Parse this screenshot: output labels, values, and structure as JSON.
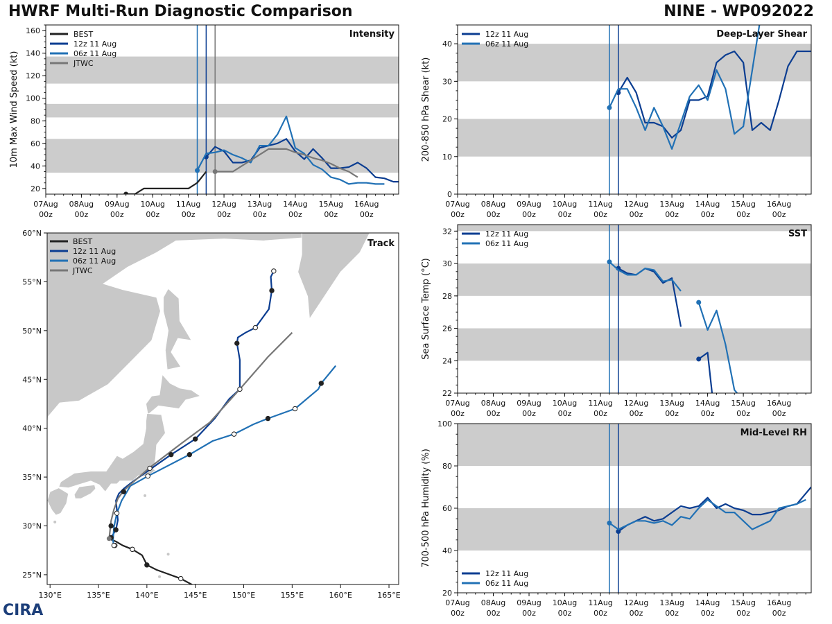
{
  "header": {
    "title_left": "HWRF Multi-Run Diagnostic Comparison",
    "title_right": "NINE - WP092022",
    "logo_text": "CIRA"
  },
  "colors": {
    "best": "#222222",
    "run12": "#0b3d91",
    "run06": "#2171b5",
    "jtwc": "#777777",
    "band": "#cccccc",
    "land": "#c8c8c8"
  },
  "legend": {
    "best": "BEST",
    "run12": "12z 11 Aug",
    "run06": "06z 11 Aug",
    "jtwc": "JTWC"
  },
  "time_axis": {
    "start_day": 7,
    "end_day": 16.9,
    "tick_days": [
      7,
      8,
      9,
      10,
      11,
      12,
      13,
      14,
      15,
      16
    ],
    "tick_labels": [
      "07Aug",
      "08Aug",
      "09Aug",
      "10Aug",
      "11Aug",
      "12Aug",
      "13Aug",
      "14Aug",
      "15Aug",
      "16Aug"
    ],
    "tick_sub": "00z",
    "init_lines": [
      11.25,
      11.5
    ]
  },
  "chart_data": [
    {
      "id": "intensity",
      "type": "line",
      "title": "Intensity",
      "ylabel": "10m Max Wind Speed (kt)",
      "ylim": [
        15,
        165
      ],
      "yticks": [
        20,
        40,
        60,
        80,
        100,
        120,
        140,
        160
      ],
      "bands": [
        [
          34,
          64
        ],
        [
          83,
          95
        ],
        [
          113,
          137
        ]
      ],
      "extra_vline": 11.75,
      "series": [
        {
          "key": "best",
          "name": "BEST",
          "x": [
            9.25,
            9.5,
            9.75,
            10,
            10.25,
            10.5,
            10.75,
            11,
            11.25,
            11.5
          ],
          "y": [
            15,
            15,
            20,
            20,
            20,
            20,
            20,
            20,
            25,
            35
          ]
        },
        {
          "key": "run12",
          "name": "12z 11 Aug",
          "x": [
            11.5,
            11.75,
            12,
            12.25,
            12.5,
            12.75,
            13,
            13.25,
            13.5,
            13.75,
            14,
            14.25,
            14.5,
            14.75,
            15,
            15.25,
            15.5,
            15.75,
            16,
            16.25,
            16.5,
            16.75,
            16.9
          ],
          "y": [
            48,
            57,
            53,
            43,
            43,
            45,
            56,
            58,
            60,
            64,
            53,
            46,
            55,
            47,
            38,
            38,
            39,
            43,
            38,
            30,
            29,
            26,
            26
          ]
        },
        {
          "key": "run06",
          "name": "06z 11 Aug",
          "x": [
            11.25,
            11.5,
            11.75,
            12,
            12.25,
            12.5,
            12.75,
            13,
            13.25,
            13.5,
            13.75,
            14,
            14.25,
            14.5,
            14.75,
            15,
            15.25,
            15.5,
            15.75,
            16,
            16.25,
            16.5
          ],
          "y": [
            36,
            51,
            52,
            54,
            50,
            47,
            43,
            58,
            58,
            68,
            84,
            56,
            51,
            41,
            37,
            30,
            28,
            24,
            25,
            25,
            24,
            24
          ]
        },
        {
          "key": "jtwc",
          "name": "JTWC",
          "x": [
            11.75,
            12,
            12.25,
            12.5,
            12.75,
            13,
            13.25,
            13.5,
            13.75,
            14,
            14.25,
            14.5,
            14.75,
            15,
            15.25,
            15.5,
            15.75
          ],
          "y": [
            35,
            35,
            35,
            40,
            45,
            50,
            55,
            55,
            55,
            52,
            50,
            47,
            45,
            42,
            38,
            35,
            30
          ]
        }
      ]
    },
    {
      "id": "shear",
      "type": "line",
      "title": "Deep-Layer Shear",
      "ylabel": "200-850 hPa Shear (kt)",
      "ylim": [
        0,
        45
      ],
      "yticks": [
        0,
        10,
        20,
        30,
        40
      ],
      "bands": [
        [
          10,
          20
        ],
        [
          30,
          40
        ]
      ],
      "series": [
        {
          "key": "run12",
          "name": "12z 11 Aug",
          "x": [
            11.5,
            11.75,
            12,
            12.25,
            12.5,
            12.75,
            13,
            13.25,
            13.5,
            13.75,
            14,
            14.25,
            14.5,
            14.75,
            15,
            15.25,
            15.5,
            15.75,
            16,
            16.25,
            16.5,
            16.75,
            16.9
          ],
          "y": [
            27,
            31,
            27,
            19,
            19,
            18,
            15,
            17,
            25,
            25,
            26,
            35,
            37,
            38,
            35,
            17,
            19,
            17,
            25,
            34,
            38,
            38,
            38
          ]
        },
        {
          "key": "run06",
          "name": "06z 11 Aug",
          "x": [
            11.25,
            11.5,
            11.75,
            12,
            12.25,
            12.5,
            12.75,
            13,
            13.25,
            13.5,
            13.75,
            14,
            14.25,
            14.5,
            14.75,
            15,
            15.25,
            15.45
          ],
          "y": [
            23,
            28,
            28,
            23,
            17,
            23,
            18,
            12,
            19,
            26,
            29,
            25,
            33,
            28,
            16,
            18,
            33,
            45
          ]
        }
      ]
    },
    {
      "id": "sst",
      "type": "line",
      "title": "SST",
      "ylabel": "Sea Surface Temp (°C)",
      "ylim": [
        22,
        32.4
      ],
      "yticks": [
        22,
        24,
        26,
        28,
        30,
        32
      ],
      "bands": [
        [
          24,
          26
        ],
        [
          28,
          30
        ],
        [
          32,
          33
        ]
      ],
      "series": [
        {
          "key": "run12",
          "name": "12z 11 Aug",
          "x": [
            11.5,
            11.75,
            12,
            12.25,
            12.5,
            12.75,
            13,
            13.25
          ],
          "y": [
            29.7,
            29.4,
            29.3,
            29.7,
            29.5,
            28.8,
            29.1,
            26.1
          ]
        },
        {
          "key": "run12",
          "name": "12z 11 Aug (cont)",
          "x": [
            13.75,
            14,
            14.15
          ],
          "y": [
            24.1,
            24.5,
            21.5
          ]
        },
        {
          "key": "run06",
          "name": "06z 11 Aug",
          "x": [
            11.25,
            11.5,
            11.75,
            12,
            12.25,
            12.5,
            12.75,
            13,
            13.25
          ],
          "y": [
            30.1,
            29.6,
            29.3,
            29.3,
            29.7,
            29.6,
            28.9,
            29.0,
            28.3
          ]
        },
        {
          "key": "run06",
          "name": "06z 11 Aug (cont)",
          "x": [
            13.75,
            14,
            14.25,
            14.5,
            14.75,
            14.9
          ],
          "y": [
            27.6,
            25.9,
            27.1,
            25.0,
            22.2,
            21.8
          ]
        }
      ]
    },
    {
      "id": "rh",
      "type": "line",
      "title": "Mid-Level RH",
      "ylabel": "700-500 hPa Humidity (%)",
      "ylim": [
        20,
        100
      ],
      "yticks": [
        20,
        40,
        60,
        80,
        100
      ],
      "bands": [
        [
          40,
          60
        ],
        [
          80,
          100
        ]
      ],
      "series": [
        {
          "key": "run12",
          "name": "12z 11 Aug",
          "x": [
            11.5,
            11.75,
            12,
            12.25,
            12.5,
            12.75,
            13,
            13.25,
            13.5,
            13.75,
            14,
            14.25,
            14.5,
            14.75,
            15,
            15.25,
            15.5,
            15.75,
            16,
            16.25,
            16.5,
            16.75,
            16.9
          ],
          "y": [
            49,
            52,
            54,
            56,
            54,
            55,
            58,
            61,
            60,
            61,
            65,
            60,
            62,
            60,
            59,
            57,
            57,
            58,
            59,
            61,
            62,
            67,
            70
          ]
        },
        {
          "key": "run06",
          "name": "06z 11 Aug",
          "x": [
            11.25,
            11.5,
            11.75,
            12,
            12.25,
            12.5,
            12.75,
            13,
            13.25,
            13.5,
            13.75,
            14,
            14.25,
            14.5,
            14.75,
            15,
            15.25,
            15.5,
            15.75,
            16,
            16.25,
            16.5,
            16.75
          ],
          "y": [
            53,
            50,
            52,
            54,
            54,
            53,
            54,
            52,
            56,
            55,
            60,
            64,
            61,
            58,
            58,
            54,
            50,
            52,
            54,
            60,
            61,
            62,
            64
          ]
        }
      ]
    },
    {
      "id": "track",
      "type": "scatter",
      "title": "Track",
      "xlim": [
        129.7,
        166
      ],
      "ylim": [
        24,
        60
      ],
      "xticks": [
        130,
        135,
        140,
        145,
        150,
        155,
        160,
        165
      ],
      "xtick_labels": [
        "130°E",
        "135°E",
        "140°E",
        "145°E",
        "150°E",
        "155°E",
        "160°E",
        "165°E"
      ],
      "yticks": [
        25,
        30,
        35,
        40,
        45,
        50,
        55,
        60
      ],
      "ytick_labels": [
        "25°N",
        "30°N",
        "35°N",
        "40°N",
        "45°N",
        "50°N",
        "55°N",
        "60°N"
      ],
      "series": [
        {
          "key": "best",
          "name": "BEST",
          "lon": [
            145,
            143.5,
            141,
            140,
            139.5,
            138.5,
            137.5,
            136.8,
            136.3,
            136.1,
            136.2
          ],
          "lat": [
            23.8,
            24.6,
            25.5,
            26.0,
            27.0,
            27.6,
            28.0,
            28.4,
            28.6,
            28.8,
            28.7
          ]
        },
        {
          "key": "run12",
          "name": "12z 11 Aug",
          "lon": [
            136.3,
            136.8,
            137,
            136.8,
            137.1,
            137.6,
            138.5,
            140.2,
            142.5,
            145,
            147,
            148.5,
            149.6,
            149.6,
            149.3,
            149.4,
            150.2,
            151.2,
            152.6,
            152.9,
            152.8,
            153.1
          ],
          "lat": [
            28.8,
            29.6,
            30.6,
            32.6,
            33.3,
            33.8,
            34.5,
            35.7,
            37.3,
            38.9,
            41.0,
            43.0,
            44.0,
            47.0,
            48.7,
            49.3,
            49.8,
            50.3,
            52.2,
            54.1,
            55.5,
            56.1
          ]
        },
        {
          "key": "run06",
          "name": "06z 11 Aug",
          "lon": [
            136.6,
            136.5,
            136.6,
            136.9,
            137.4,
            138.3,
            140.1,
            144.4,
            146.8,
            149,
            151,
            152.5,
            155.3,
            157.7,
            158,
            159.5
          ],
          "lat": [
            27.9,
            28.5,
            29.9,
            31.3,
            32.6,
            34.1,
            35.1,
            37.3,
            38.7,
            39.4,
            40.4,
            41.0,
            42.0,
            44.0,
            44.6,
            46.4
          ]
        },
        {
          "key": "jtwc",
          "name": "JTWC",
          "lon": [
            136.1,
            136.3,
            136.6,
            137,
            137.6,
            138.6,
            140.2,
            143.5,
            146.5,
            149.6,
            152.5,
            155
          ],
          "lat": [
            28.7,
            30.5,
            31.7,
            32.8,
            33.6,
            34.5,
            35.9,
            38.4,
            40.6,
            44.0,
            47.3,
            49.8
          ]
        }
      ],
      "markers": [
        {
          "key": "best",
          "type": "filled",
          "lon": [
            145,
            140,
            136.8,
            138.5
          ],
          "lat": [
            23.8,
            26.0,
            29.6,
            27.6
          ]
        },
        {
          "key": "best",
          "type": "open",
          "lon": [
            143.5,
            138.5,
            136.7
          ],
          "lat": [
            24.6,
            27.6,
            28.0
          ]
        },
        {
          "key": "run12",
          "type": "filled",
          "lon": [
            136.3,
            137.6,
            142.5,
            145,
            149.3,
            152.9
          ],
          "lat": [
            30.0,
            33.5,
            37.3,
            38.9,
            48.7,
            54.1
          ]
        },
        {
          "key": "run12",
          "type": "open",
          "lon": [
            136.9,
            140.3,
            149.6,
            151.2,
            153.1
          ],
          "lat": [
            31.3,
            35.9,
            44.0,
            50.3,
            56.1
          ]
        },
        {
          "key": "run06",
          "type": "filled",
          "lon": [
            136.3,
            144.4,
            152.5,
            158
          ],
          "lat": [
            28.8,
            37.3,
            41.0,
            44.6
          ]
        },
        {
          "key": "run06",
          "type": "open",
          "lon": [
            136.6,
            140.1,
            149,
            155.3
          ],
          "lat": [
            28.0,
            35.1,
            39.4,
            42.0
          ]
        }
      ]
    }
  ]
}
